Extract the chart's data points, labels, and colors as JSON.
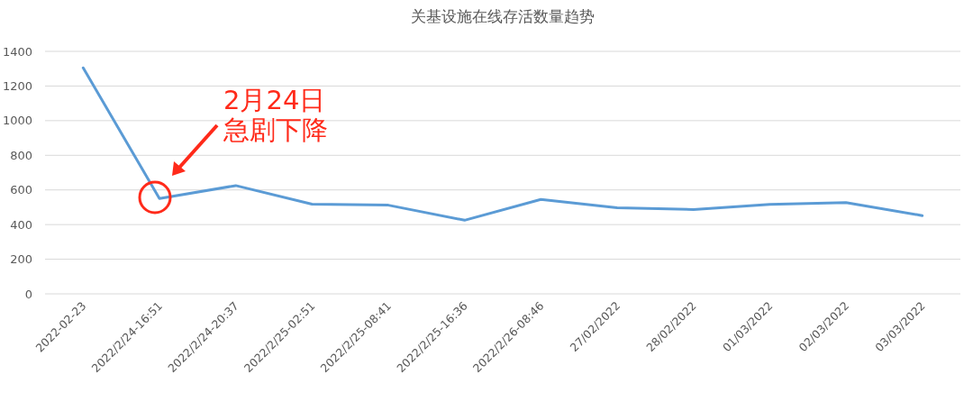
{
  "chart_data": {
    "type": "line",
    "title": "关基设施在线存活数量趋势",
    "categories": [
      "2022-02-23",
      "2022/2/24-16:51",
      "2022/2/24-20:37",
      "2022/2/25-02:51",
      "2022/2/25-08:41",
      "2022/2/25-16:36",
      "2022/2/26-08:46",
      "27/02/2022",
      "28/02/2022",
      "01/03/2022",
      "02/03/2022",
      "03/03/2022"
    ],
    "series": [
      {
        "color": "#5b9bd5",
        "values": [
          1305,
          550,
          625,
          518,
          512,
          425,
          545,
          497,
          487,
          517,
          527,
          452
        ]
      }
    ],
    "ylim": [
      0,
      1400
    ],
    "yticks": [
      0,
      200,
      400,
      600,
      800,
      1000,
      1200,
      1400
    ],
    "grid": "y",
    "marker": "none",
    "line_style": "solid",
    "annotations": [
      "2月24日急剧下降"
    ]
  }
}
